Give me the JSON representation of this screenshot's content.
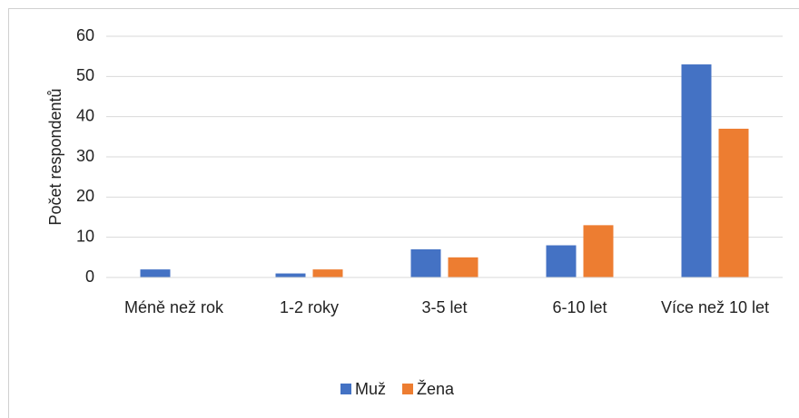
{
  "chart_data": {
    "type": "bar",
    "y_label": "Počet respondentů",
    "categories": [
      "Méně než rok",
      "1-2 roky",
      "3-5 let",
      "6-10 let",
      "Více než 10 let"
    ],
    "series": [
      {
        "name": "Muž",
        "color": "#4472c4",
        "values": [
          2,
          1,
          7,
          8,
          53
        ]
      },
      {
        "name": "Žena",
        "color": "#ed7d31",
        "values": [
          0,
          2,
          5,
          13,
          37
        ]
      }
    ],
    "ylim": [
      0,
      60
    ],
    "yticks": [
      0,
      10,
      20,
      30,
      40,
      50,
      60
    ],
    "grid": true,
    "legend": "bottom"
  }
}
